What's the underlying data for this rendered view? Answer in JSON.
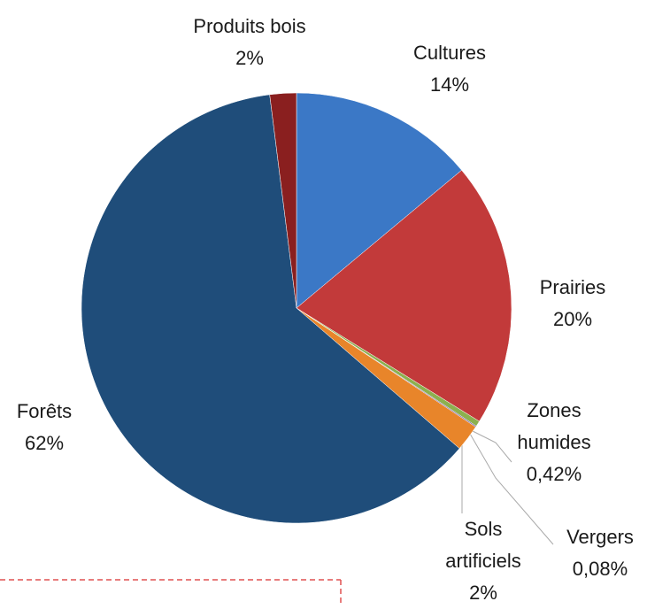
{
  "chart_data": {
    "type": "pie",
    "categories": [
      "Cultures",
      "Prairies",
      "Zones humides",
      "Vergers",
      "Sols artificiels",
      "Forêts",
      "Produits bois"
    ],
    "values": [
      14,
      20,
      0.42,
      0.08,
      2,
      62,
      2
    ],
    "value_labels": [
      "14%",
      "20%",
      "0,42%",
      "0,08%",
      "2%",
      "62%",
      "2%"
    ],
    "colors": [
      "#3b78c6",
      "#c23a3a",
      "#8cb04f",
      "#6b4f9e",
      "#e8852a",
      "#1f4d7a",
      "#8a1f1f"
    ]
  }
}
